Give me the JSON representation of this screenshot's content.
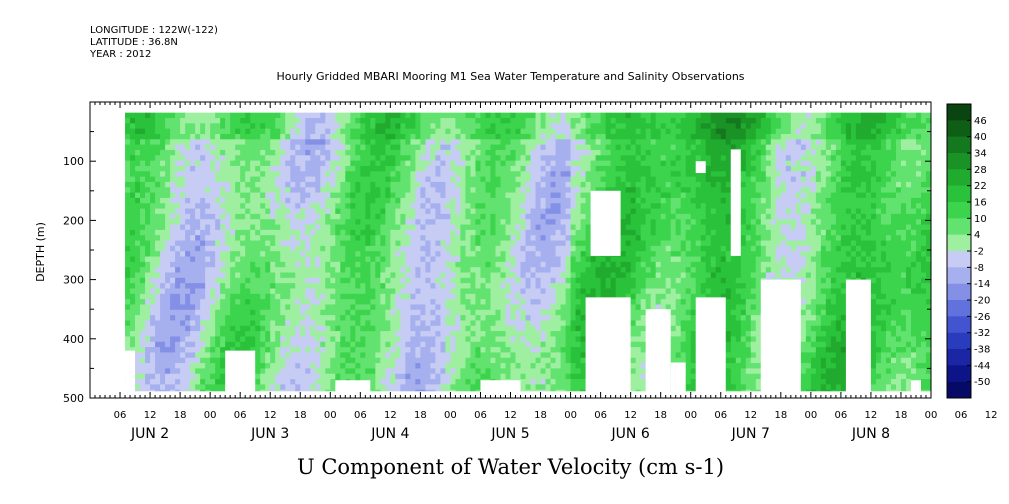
{
  "meta": {
    "longitude": "LONGITUDE : 122W(-122)",
    "latitude": "LATITUDE : 36.8N",
    "year": "YEAR : 2012"
  },
  "chart_data": {
    "type": "heatmap",
    "title": "Hourly Gridded MBARI Mooring M1 Sea Water Temperature and Salinity Observations",
    "xlabel": "U Component of Water Velocity (cm s-1)",
    "ylabel": "DEPTH (m)",
    "x_range_hours": [
      0,
      168
    ],
    "ylim": [
      500,
      0
    ],
    "y_ticks": [
      100,
      200,
      300,
      400,
      500
    ],
    "x_hour_ticks": [
      "06",
      "12",
      "18",
      "00",
      "06",
      "12",
      "18",
      "00",
      "06",
      "12",
      "18",
      "00",
      "06",
      "12",
      "18",
      "00",
      "06",
      "12",
      "18",
      "00",
      "06",
      "12",
      "18",
      "00",
      "06",
      "12",
      "18",
      "00",
      "06",
      "12",
      "18",
      "00"
    ],
    "day_labels": [
      "JUN  2",
      "JUN  3",
      "JUN  4",
      "JUN  5",
      "JUN  6",
      "JUN  7",
      "JUN  8"
    ],
    "colorbar": {
      "labels": [
        "46",
        "40",
        "34",
        "28",
        "22",
        "16",
        "10",
        "4",
        "-2",
        "-8",
        "-14",
        "-20",
        "-26",
        "-32",
        "-38",
        "-44",
        "-50"
      ],
      "colors": [
        "#0a4410",
        "#0e5e16",
        "#14781e",
        "#1a9226",
        "#20aa2e",
        "#2ac23a",
        "#3cd44c",
        "#62e26e",
        "#9ef0a0",
        "#c6ccf4",
        "#a6b0ee",
        "#8490e6",
        "#6272dc",
        "#4254d0",
        "#2a3cbe",
        "#1a26a4",
        "#0c1488",
        "#060a66"
      ]
    },
    "field": {
      "depth_range": [
        18,
        488
      ],
      "hour_range": [
        7,
        168
      ],
      "description_values": "U velocity roughly between -20 and 24 cm/s; blue (negative) bands dominate Jun 2-5 mid-depths, green (positive) dominates Jun 6-8"
    },
    "missing_regions": [
      {
        "hours": [
          7,
          9
        ],
        "depth": [
          420,
          500
        ]
      },
      {
        "hours": [
          27,
          33
        ],
        "depth": [
          420,
          500
        ]
      },
      {
        "hours": [
          49,
          56
        ],
        "depth": [
          470,
          500
        ]
      },
      {
        "hours": [
          78,
          86
        ],
        "depth": [
          470,
          500
        ]
      },
      {
        "hours": [
          99,
          108
        ],
        "depth": [
          330,
          500
        ]
      },
      {
        "hours": [
          111,
          116
        ],
        "depth": [
          350,
          500
        ]
      },
      {
        "hours": [
          116,
          119
        ],
        "depth": [
          440,
          500
        ]
      },
      {
        "hours": [
          121,
          127
        ],
        "depth": [
          330,
          500
        ]
      },
      {
        "hours": [
          134,
          142
        ],
        "depth": [
          300,
          500
        ]
      },
      {
        "hours": [
          151,
          156
        ],
        "depth": [
          300,
          500
        ]
      },
      {
        "hours": [
          164,
          166
        ],
        "depth": [
          470,
          500
        ]
      },
      {
        "hours": [
          100,
          106
        ],
        "depth": [
          150,
          260
        ]
      },
      {
        "hours": [
          128,
          130
        ],
        "depth": [
          80,
          260
        ]
      },
      {
        "hours": [
          121,
          123
        ],
        "depth": [
          100,
          120
        ]
      }
    ]
  }
}
